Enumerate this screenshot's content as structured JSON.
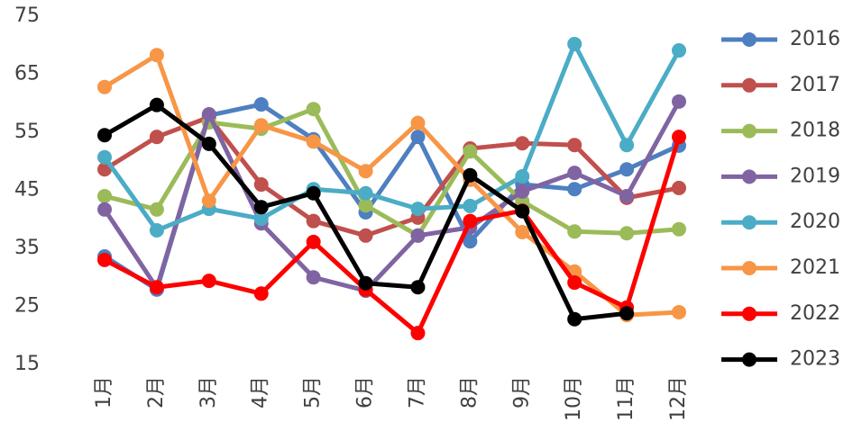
{
  "chart_data": {
    "type": "line",
    "categories": [
      "1月",
      "2月",
      "3月",
      "4月",
      "5月",
      "6月",
      "7月",
      "8月",
      "9月",
      "10月",
      "11月",
      "12月"
    ],
    "ylim": [
      15,
      75
    ],
    "yticks": [
      15,
      25,
      35,
      45,
      55,
      65,
      75
    ],
    "grid": false,
    "legend": "right",
    "series": [
      {
        "name": "2016",
        "color": "#4e7fc0",
        "values": [
          33.6,
          27.9,
          57.9,
          59.8,
          53.8,
          41.2,
          54.2,
          36.2,
          46.0,
          45.2,
          48.6,
          52.7
        ]
      },
      {
        "name": "2017",
        "color": "#c0504d",
        "values": [
          48.6,
          54.2,
          57.6,
          46.0,
          39.7,
          37.2,
          40.3,
          52.2,
          53.1,
          52.8,
          43.7,
          45.4
        ]
      },
      {
        "name": "2018",
        "color": "#9bbb59",
        "values": [
          44.0,
          41.7,
          56.7,
          55.6,
          59.0,
          42.4,
          37.2,
          51.7,
          43.1,
          37.9,
          37.6,
          38.3
        ]
      },
      {
        "name": "2019",
        "color": "#8064a2",
        "values": [
          41.7,
          28.2,
          58.1,
          39.3,
          30.0,
          27.7,
          37.2,
          38.6,
          44.8,
          48.0,
          44.0,
          60.3
        ]
      },
      {
        "name": "2020",
        "color": "#4bacc6",
        "values": [
          50.7,
          38.1,
          41.8,
          40.1,
          45.2,
          44.5,
          41.8,
          42.3,
          47.4,
          70.2,
          52.8,
          69.1
        ]
      },
      {
        "name": "2021",
        "color": "#f79646",
        "values": [
          62.8,
          68.3,
          43.2,
          56.2,
          53.4,
          48.3,
          56.6,
          46.8,
          37.8,
          31.0,
          23.5,
          24.0
        ]
      },
      {
        "name": "2022",
        "color": "#ff0000",
        "values": [
          33.0,
          28.3,
          29.4,
          27.2,
          36.1,
          27.9,
          20.4,
          39.7,
          41.5,
          29.1,
          24.8,
          54.2
        ]
      },
      {
        "name": "2023",
        "color": "#000000",
        "values": [
          54.5,
          59.7,
          53.0,
          42.1,
          44.5,
          29.0,
          28.3,
          47.6,
          41.4,
          22.8,
          23.8,
          null
        ]
      }
    ]
  }
}
